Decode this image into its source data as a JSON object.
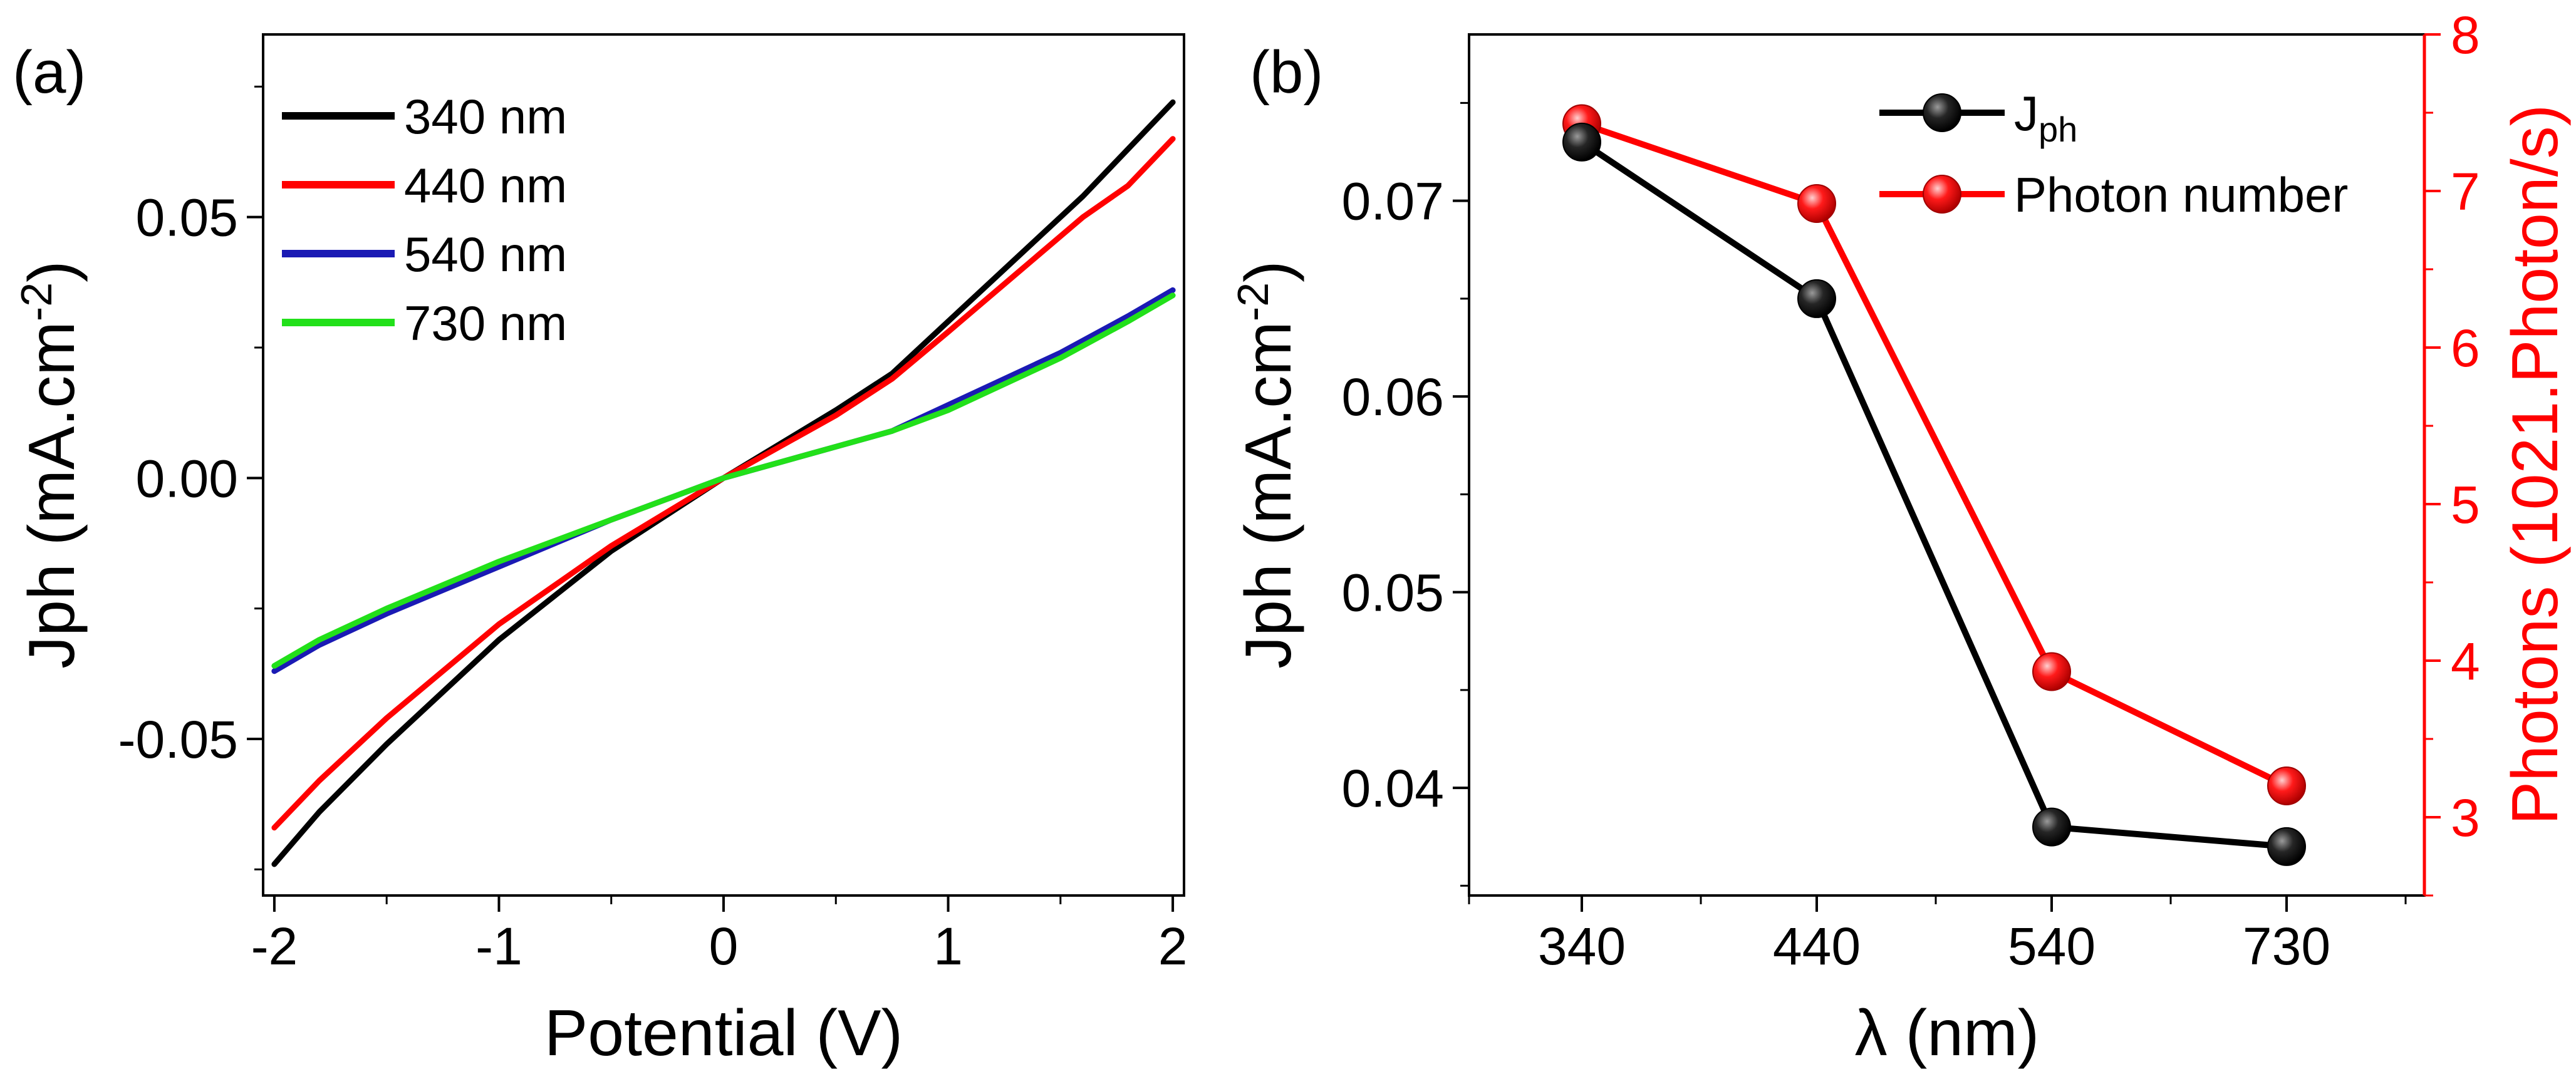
{
  "colors": {
    "black": "#000000",
    "red": "#ff0000",
    "blue": "#1a1ab4",
    "green": "#22e01a",
    "axis": "#000000",
    "right_axis": "#ff0000"
  },
  "chart_data": [
    {
      "type": "line",
      "panel_label": "(a)",
      "title": "",
      "xlabel": "Potential (V)",
      "ylabel_main": "Jph",
      "ylabel_unit": "(mA.cm",
      "ylabel_sup": "-2",
      "ylabel_close": ")",
      "xlim": [
        -2.05,
        2.05
      ],
      "ylim": [
        -0.08,
        0.085
      ],
      "xticks": [
        -2,
        -1,
        0,
        1,
        2
      ],
      "xtick_labels": [
        "-2",
        "-1",
        "0",
        "1",
        "2"
      ],
      "yticks": [
        -0.05,
        0.0,
        0.05
      ],
      "ytick_labels": [
        "-0.05",
        "0.00",
        "0.05"
      ],
      "legend_position": "top-left",
      "series": [
        {
          "name": "340 nm",
          "color": "#000000",
          "x": [
            -2.0,
            -1.8,
            -1.5,
            -1.0,
            -0.5,
            0.0,
            0.5,
            0.75,
            1.0,
            1.3,
            1.6,
            2.0
          ],
          "y": [
            -0.074,
            -0.064,
            -0.051,
            -0.031,
            -0.014,
            0.0,
            0.013,
            0.02,
            0.03,
            0.042,
            0.054,
            0.072
          ]
        },
        {
          "name": "440 nm",
          "color": "#ff0000",
          "x": [
            -2.0,
            -1.8,
            -1.5,
            -1.0,
            -0.5,
            0.0,
            0.5,
            0.75,
            1.0,
            1.3,
            1.6,
            1.8,
            2.0
          ],
          "y": [
            -0.067,
            -0.058,
            -0.046,
            -0.028,
            -0.013,
            0.0,
            0.012,
            0.019,
            0.028,
            0.039,
            0.05,
            0.056,
            0.065
          ]
        },
        {
          "name": "540 nm",
          "color": "#1a1ab4",
          "x": [
            -2.0,
            -1.8,
            -1.5,
            -1.0,
            -0.5,
            0.0,
            0.5,
            0.75,
            1.0,
            1.5,
            1.8,
            2.0
          ],
          "y": [
            -0.037,
            -0.032,
            -0.026,
            -0.017,
            -0.008,
            0.0,
            0.006,
            0.009,
            0.014,
            0.024,
            0.031,
            0.036
          ]
        },
        {
          "name": "730 nm",
          "color": "#22e01a",
          "x": [
            -2.0,
            -1.8,
            -1.5,
            -1.0,
            -0.5,
            0.0,
            0.5,
            0.75,
            1.0,
            1.5,
            1.8,
            2.0
          ],
          "y": [
            -0.036,
            -0.031,
            -0.025,
            -0.016,
            -0.008,
            0.0,
            0.006,
            0.009,
            0.013,
            0.023,
            0.03,
            0.035
          ]
        }
      ]
    },
    {
      "type": "line",
      "panel_label": "(b)",
      "title": "",
      "xlabel": "λ (nm)",
      "ylabel_main": "Jph",
      "ylabel_unit": "(mA.cm",
      "ylabel_sup": "-2",
      "ylabel_close": ")",
      "ylabel_right": "Photons (1021.Photon/s)",
      "categories": [
        "340",
        "440",
        "540",
        "730"
      ],
      "ylim": [
        0.0345,
        0.0785
      ],
      "yticks": [
        0.04,
        0.05,
        0.06,
        0.07
      ],
      "ytick_labels": [
        "0.04",
        "0.05",
        "0.06",
        "0.07"
      ],
      "ylim_right": [
        2.5,
        8.0
      ],
      "yticks_right": [
        3,
        4,
        5,
        6,
        7,
        8
      ],
      "ytick_labels_right": [
        "3",
        "4",
        "5",
        "6",
        "7",
        "8"
      ],
      "legend_position": "top-right",
      "series": [
        {
          "name": "J",
          "name_sub": "ph",
          "axis": "left",
          "color": "#000000",
          "values": [
            0.073,
            0.065,
            0.038,
            0.037
          ]
        },
        {
          "name": "Photon number",
          "axis": "right",
          "color": "#ff0000",
          "values": [
            7.43,
            6.92,
            3.93,
            3.2
          ]
        }
      ]
    }
  ]
}
